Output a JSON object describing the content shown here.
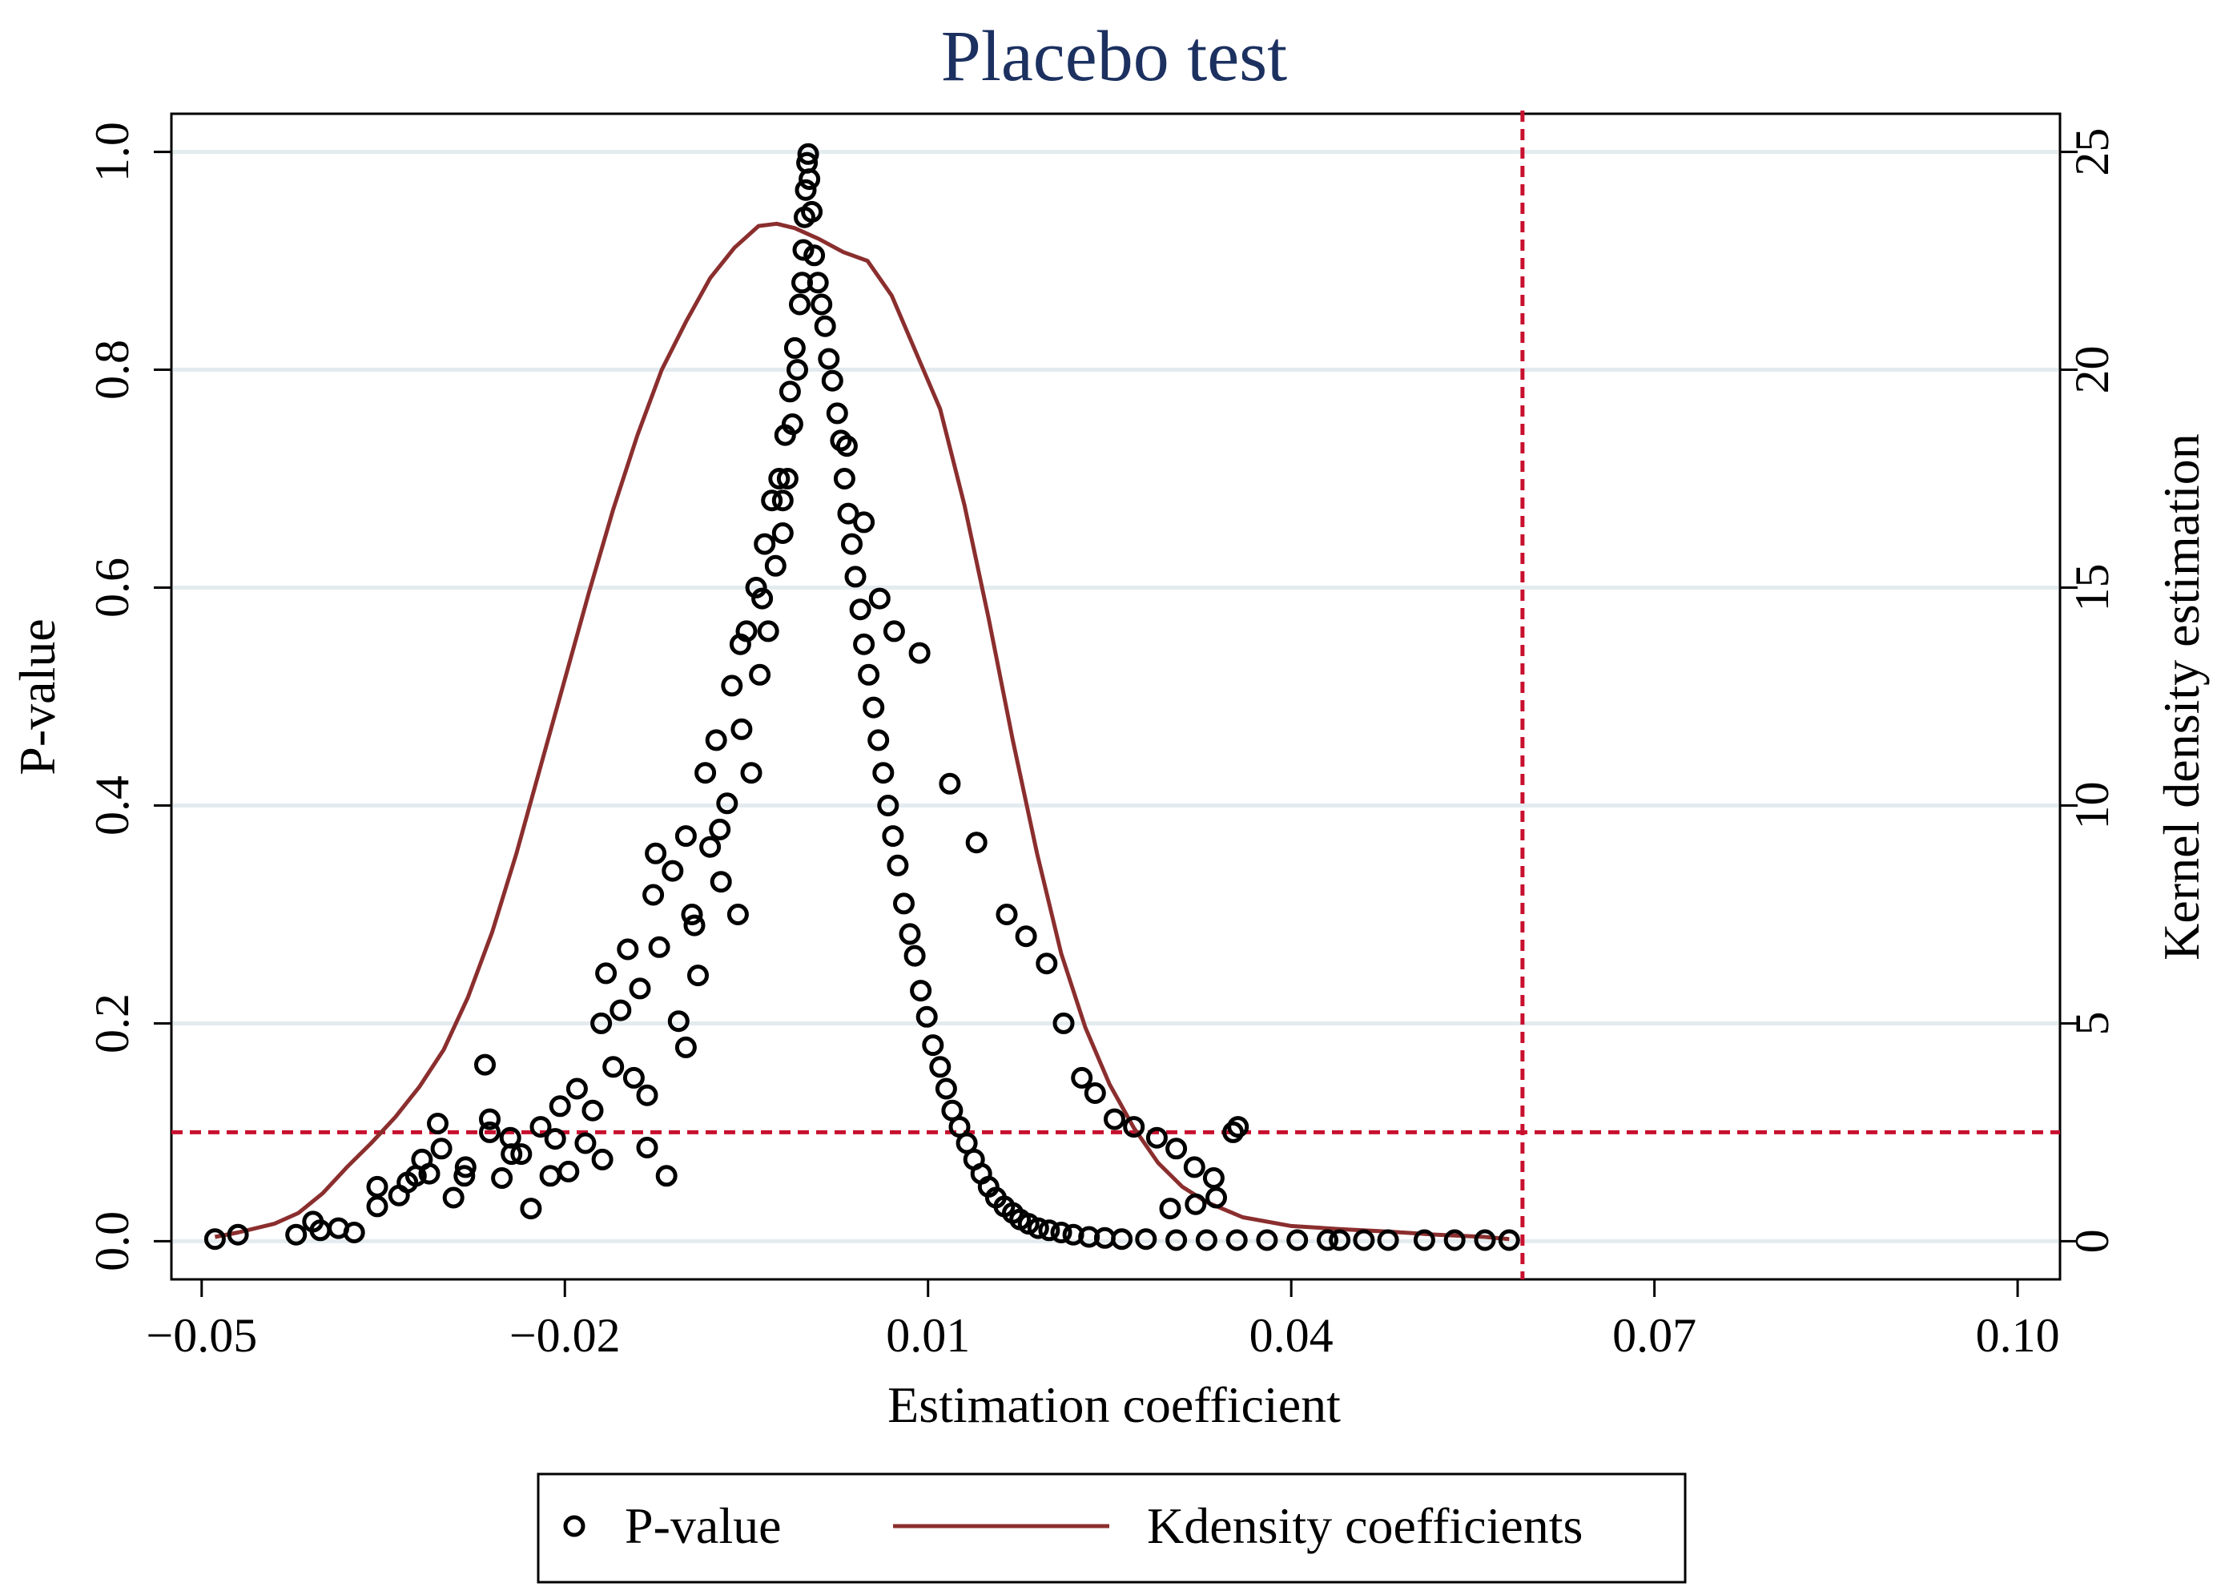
{
  "chart_data": {
    "type": "scatter",
    "title": "Placebo test",
    "xlabel": "Estimation coefficient",
    "ylabel_left": "P-value",
    "ylabel_right": "Kernel density estimation",
    "xlim": [
      -0.0525,
      0.1035
    ],
    "ylim_left": [
      -0.035,
      1.035
    ],
    "ylim_right": [
      -0.875,
      25.875
    ],
    "x_ticks": [
      -0.05,
      -0.02,
      0.01,
      0.04,
      0.07,
      0.1
    ],
    "x_tick_labels": [
      "−0.05",
      "−0.02",
      "0.01",
      "0.04",
      "0.07",
      "0.10"
    ],
    "y_left_ticks": [
      0.0,
      0.2,
      0.4,
      0.6,
      0.8,
      1.0
    ],
    "y_left_tick_labels": [
      "0.0",
      "0.2",
      "0.4",
      "0.6",
      "0.8",
      "1.0"
    ],
    "y_right_ticks": [
      0,
      5,
      10,
      15,
      20,
      25
    ],
    "y_right_tick_labels": [
      "0",
      "5",
      "10",
      "15",
      "20",
      "25"
    ],
    "grid": true,
    "reference_lines": [
      {
        "axis": "y",
        "value": 0.1,
        "style": "dashed",
        "color": "#c8102e"
      },
      {
        "axis": "x",
        "value": 0.0591,
        "style": "dashed",
        "color": "#c8102e"
      }
    ],
    "legend_position": "bottom",
    "series": [
      {
        "name": "P-value",
        "kind": "scatter",
        "marker": "hollow-circle",
        "color": "#000000",
        "points": [
          [
            -0.0489,
            0.002
          ],
          [
            -0.047,
            0.006
          ],
          [
            -0.0422,
            0.006
          ],
          [
            -0.0402,
            0.01
          ],
          [
            -0.0408,
            0.018
          ],
          [
            -0.0387,
            0.012
          ],
          [
            -0.0374,
            0.008
          ],
          [
            -0.0355,
            0.032
          ],
          [
            -0.0337,
            0.042
          ],
          [
            -0.033,
            0.054
          ],
          [
            -0.0318,
            0.075
          ],
          [
            -0.0312,
            0.062
          ],
          [
            -0.0302,
            0.085
          ],
          [
            -0.0292,
            0.04
          ],
          [
            -0.0282,
            0.068
          ],
          [
            -0.0266,
            0.162
          ],
          [
            -0.0262,
            0.112
          ],
          [
            -0.0252,
            0.058
          ],
          [
            -0.0245,
            0.095
          ],
          [
            -0.0236,
            0.08
          ],
          [
            -0.0228,
            0.03
          ],
          [
            -0.022,
            0.105
          ],
          [
            -0.0212,
            0.06
          ],
          [
            -0.0204,
            0.124
          ],
          [
            -0.0197,
            0.064
          ],
          [
            -0.019,
            0.14
          ],
          [
            -0.0183,
            0.09
          ],
          [
            -0.0177,
            0.12
          ],
          [
            -0.017,
            0.2
          ],
          [
            -0.0166,
            0.246
          ],
          [
            -0.016,
            0.16
          ],
          [
            -0.0154,
            0.212
          ],
          [
            -0.0148,
            0.268
          ],
          [
            -0.0143,
            0.15
          ],
          [
            -0.0138,
            0.232
          ],
          [
            -0.0132,
            0.086
          ],
          [
            -0.0127,
            0.318
          ],
          [
            -0.0122,
            0.27
          ],
          [
            -0.0116,
            0.06
          ],
          [
            -0.0111,
            0.34
          ],
          [
            -0.0106,
            0.202
          ],
          [
            -0.01,
            0.372
          ],
          [
            -0.0095,
            0.3
          ],
          [
            -0.009,
            0.244
          ],
          [
            -0.0084,
            0.43
          ],
          [
            -0.008,
            0.362
          ],
          [
            -0.0075,
            0.46
          ],
          [
            -0.0071,
            0.33
          ],
          [
            -0.0066,
            0.402
          ],
          [
            -0.0062,
            0.51
          ],
          [
            -0.0057,
            0.3
          ],
          [
            -0.0054,
            0.47
          ],
          [
            -0.005,
            0.56
          ],
          [
            -0.0046,
            0.43
          ],
          [
            -0.0042,
            0.6
          ],
          [
            -0.0039,
            0.52
          ],
          [
            -0.0035,
            0.64
          ],
          [
            -0.0032,
            0.56
          ],
          [
            -0.0029,
            0.68
          ],
          [
            -0.0026,
            0.62
          ],
          [
            -0.0023,
            0.7
          ],
          [
            -0.002,
            0.65
          ],
          [
            -0.0018,
            0.74
          ],
          [
            -0.0016,
            0.7
          ],
          [
            -0.0014,
            0.78
          ],
          [
            -0.0012,
            0.75
          ],
          [
            -0.001,
            0.82
          ],
          [
            -0.0008,
            0.8
          ],
          [
            -0.0006,
            0.86
          ],
          [
            -0.0004,
            0.88
          ],
          [
            -0.0003,
            0.91
          ],
          [
            -0.0002,
            0.94
          ],
          [
            -0.0001,
            0.965
          ],
          [
            0.0,
            0.99
          ],
          [
            0.0001,
            0.998
          ],
          [
            0.0002,
            0.975
          ],
          [
            0.0004,
            0.945
          ],
          [
            0.0006,
            0.905
          ],
          [
            0.0009,
            0.88
          ],
          [
            0.0012,
            0.86
          ],
          [
            0.0015,
            0.84
          ],
          [
            0.0018,
            0.81
          ],
          [
            0.0021,
            0.79
          ],
          [
            0.0025,
            0.76
          ],
          [
            0.0028,
            0.735
          ],
          [
            0.0031,
            0.7
          ],
          [
            0.0034,
            0.668
          ],
          [
            0.0037,
            0.64
          ],
          [
            0.004,
            0.61
          ],
          [
            0.0044,
            0.58
          ],
          [
            0.0047,
            0.548
          ],
          [
            0.0051,
            0.52
          ],
          [
            0.0055,
            0.49
          ],
          [
            0.0059,
            0.46
          ],
          [
            0.0063,
            0.43
          ],
          [
            0.0067,
            0.4
          ],
          [
            0.0071,
            0.372
          ],
          [
            0.0075,
            0.345
          ],
          [
            0.008,
            0.31
          ],
          [
            0.0085,
            0.282
          ],
          [
            0.0089,
            0.262
          ],
          [
            0.0094,
            0.23
          ],
          [
            0.0099,
            0.206
          ],
          [
            0.0104,
            0.18
          ],
          [
            0.011,
            0.16
          ],
          [
            0.0115,
            0.14
          ],
          [
            0.012,
            0.12
          ],
          [
            0.0126,
            0.105
          ],
          [
            0.0132,
            0.09
          ],
          [
            0.0138,
            0.075
          ],
          [
            0.0144,
            0.062
          ],
          [
            0.015,
            0.05
          ],
          [
            0.0156,
            0.04
          ],
          [
            0.0163,
            0.032
          ],
          [
            0.017,
            0.026
          ],
          [
            0.0176,
            0.02
          ],
          [
            0.0183,
            0.016
          ],
          [
            0.0191,
            0.012
          ],
          [
            0.02,
            0.01
          ],
          [
            0.021,
            0.008
          ],
          [
            0.022,
            0.006
          ],
          [
            0.0233,
            0.004
          ],
          [
            0.0246,
            0.003
          ],
          [
            0.026,
            0.002
          ],
          [
            0.028,
            0.002
          ],
          [
            0.0305,
            0.001
          ],
          [
            0.033,
            0.001
          ],
          [
            0.0355,
            0.001
          ],
          [
            0.038,
            0.001
          ],
          [
            0.0405,
            0.001
          ],
          [
            0.043,
            0.001
          ],
          [
            0.044,
            0.001
          ],
          [
            0.046,
            0.001
          ],
          [
            0.048,
            0.001
          ],
          [
            0.051,
            0.001
          ],
          [
            0.0535,
            0.001
          ],
          [
            0.056,
            0.001
          ],
          [
            0.058,
            0.001
          ],
          [
            0.014,
            0.366
          ],
          [
            0.0118,
            0.42
          ],
          [
            0.0093,
            0.54
          ],
          [
            0.0072,
            0.56
          ],
          [
            0.006,
            0.59
          ],
          [
            0.0047,
            0.66
          ],
          [
            0.0033,
            0.73
          ],
          [
            0.0198,
            0.255
          ],
          [
            0.0181,
            0.28
          ],
          [
            0.0165,
            0.3
          ],
          [
            0.0212,
            0.2
          ],
          [
            0.0227,
            0.15
          ],
          [
            0.0238,
            0.136
          ],
          [
            0.0254,
            0.112
          ],
          [
            0.027,
            0.105
          ],
          [
            0.0289,
            0.095
          ],
          [
            0.0305,
            0.085
          ],
          [
            0.032,
            0.068
          ],
          [
            0.0336,
            0.058
          ],
          [
            0.0352,
            0.1
          ],
          [
            0.0356,
            0.105
          ],
          [
            0.0338,
            0.04
          ],
          [
            0.0321,
            0.034
          ],
          [
            0.03,
            0.03
          ],
          [
            -0.0125,
            0.356
          ],
          [
            -0.0093,
            0.29
          ],
          [
            -0.0072,
            0.378
          ],
          [
            -0.0055,
            0.548
          ],
          [
            -0.0037,
            0.59
          ],
          [
            -0.002,
            0.68
          ],
          [
            -0.01,
            0.178
          ],
          [
            -0.0132,
            0.134
          ],
          [
            -0.0169,
            0.075
          ],
          [
            -0.0208,
            0.094
          ],
          [
            -0.0244,
            0.08
          ],
          [
            -0.0283,
            0.06
          ],
          [
            -0.0323,
            0.06
          ],
          [
            -0.0355,
            0.05
          ],
          [
            -0.0305,
            0.108
          ],
          [
            -0.0262,
            0.1
          ]
        ]
      },
      {
        "name": "Kdensity coefficients",
        "kind": "line",
        "color": "#8b2e2e",
        "points": [
          [
            -0.0489,
            0.1
          ],
          [
            -0.047,
            0.2
          ],
          [
            -0.044,
            0.4
          ],
          [
            -0.042,
            0.65
          ],
          [
            -0.04,
            1.1
          ],
          [
            -0.038,
            1.7
          ],
          [
            -0.036,
            2.25
          ],
          [
            -0.034,
            2.85
          ],
          [
            -0.032,
            3.55
          ],
          [
            -0.03,
            4.4
          ],
          [
            -0.028,
            5.6
          ],
          [
            -0.026,
            7.1
          ],
          [
            -0.024,
            8.9
          ],
          [
            -0.022,
            10.9
          ],
          [
            -0.02,
            12.9
          ],
          [
            -0.018,
            14.9
          ],
          [
            -0.016,
            16.8
          ],
          [
            -0.014,
            18.5
          ],
          [
            -0.012,
            20.0
          ],
          [
            -0.01,
            21.1
          ],
          [
            -0.008,
            22.1
          ],
          [
            -0.006,
            22.8
          ],
          [
            -0.004,
            23.3
          ],
          [
            -0.0025,
            23.35
          ],
          [
            -0.001,
            23.25
          ],
          [
            0.001,
            23.0
          ],
          [
            0.003,
            22.7
          ],
          [
            0.005,
            22.5
          ],
          [
            0.007,
            21.7
          ],
          [
            0.009,
            20.4
          ],
          [
            0.011,
            19.1
          ],
          [
            0.013,
            16.9
          ],
          [
            0.015,
            14.3
          ],
          [
            0.017,
            11.5
          ],
          [
            0.019,
            8.9
          ],
          [
            0.021,
            6.6
          ],
          [
            0.023,
            4.9
          ],
          [
            0.025,
            3.6
          ],
          [
            0.027,
            2.6
          ],
          [
            0.029,
            1.8
          ],
          [
            0.031,
            1.25
          ],
          [
            0.033,
            0.9
          ],
          [
            0.036,
            0.55
          ],
          [
            0.04,
            0.35
          ],
          [
            0.044,
            0.28
          ],
          [
            0.048,
            0.22
          ],
          [
            0.052,
            0.15
          ],
          [
            0.056,
            0.1
          ],
          [
            0.058,
            0.05
          ]
        ]
      }
    ]
  },
  "legend": {
    "items": [
      {
        "label": "P-value",
        "marker": "hollow-circle"
      },
      {
        "label": "Kdensity coefficients",
        "marker": "line"
      }
    ]
  }
}
